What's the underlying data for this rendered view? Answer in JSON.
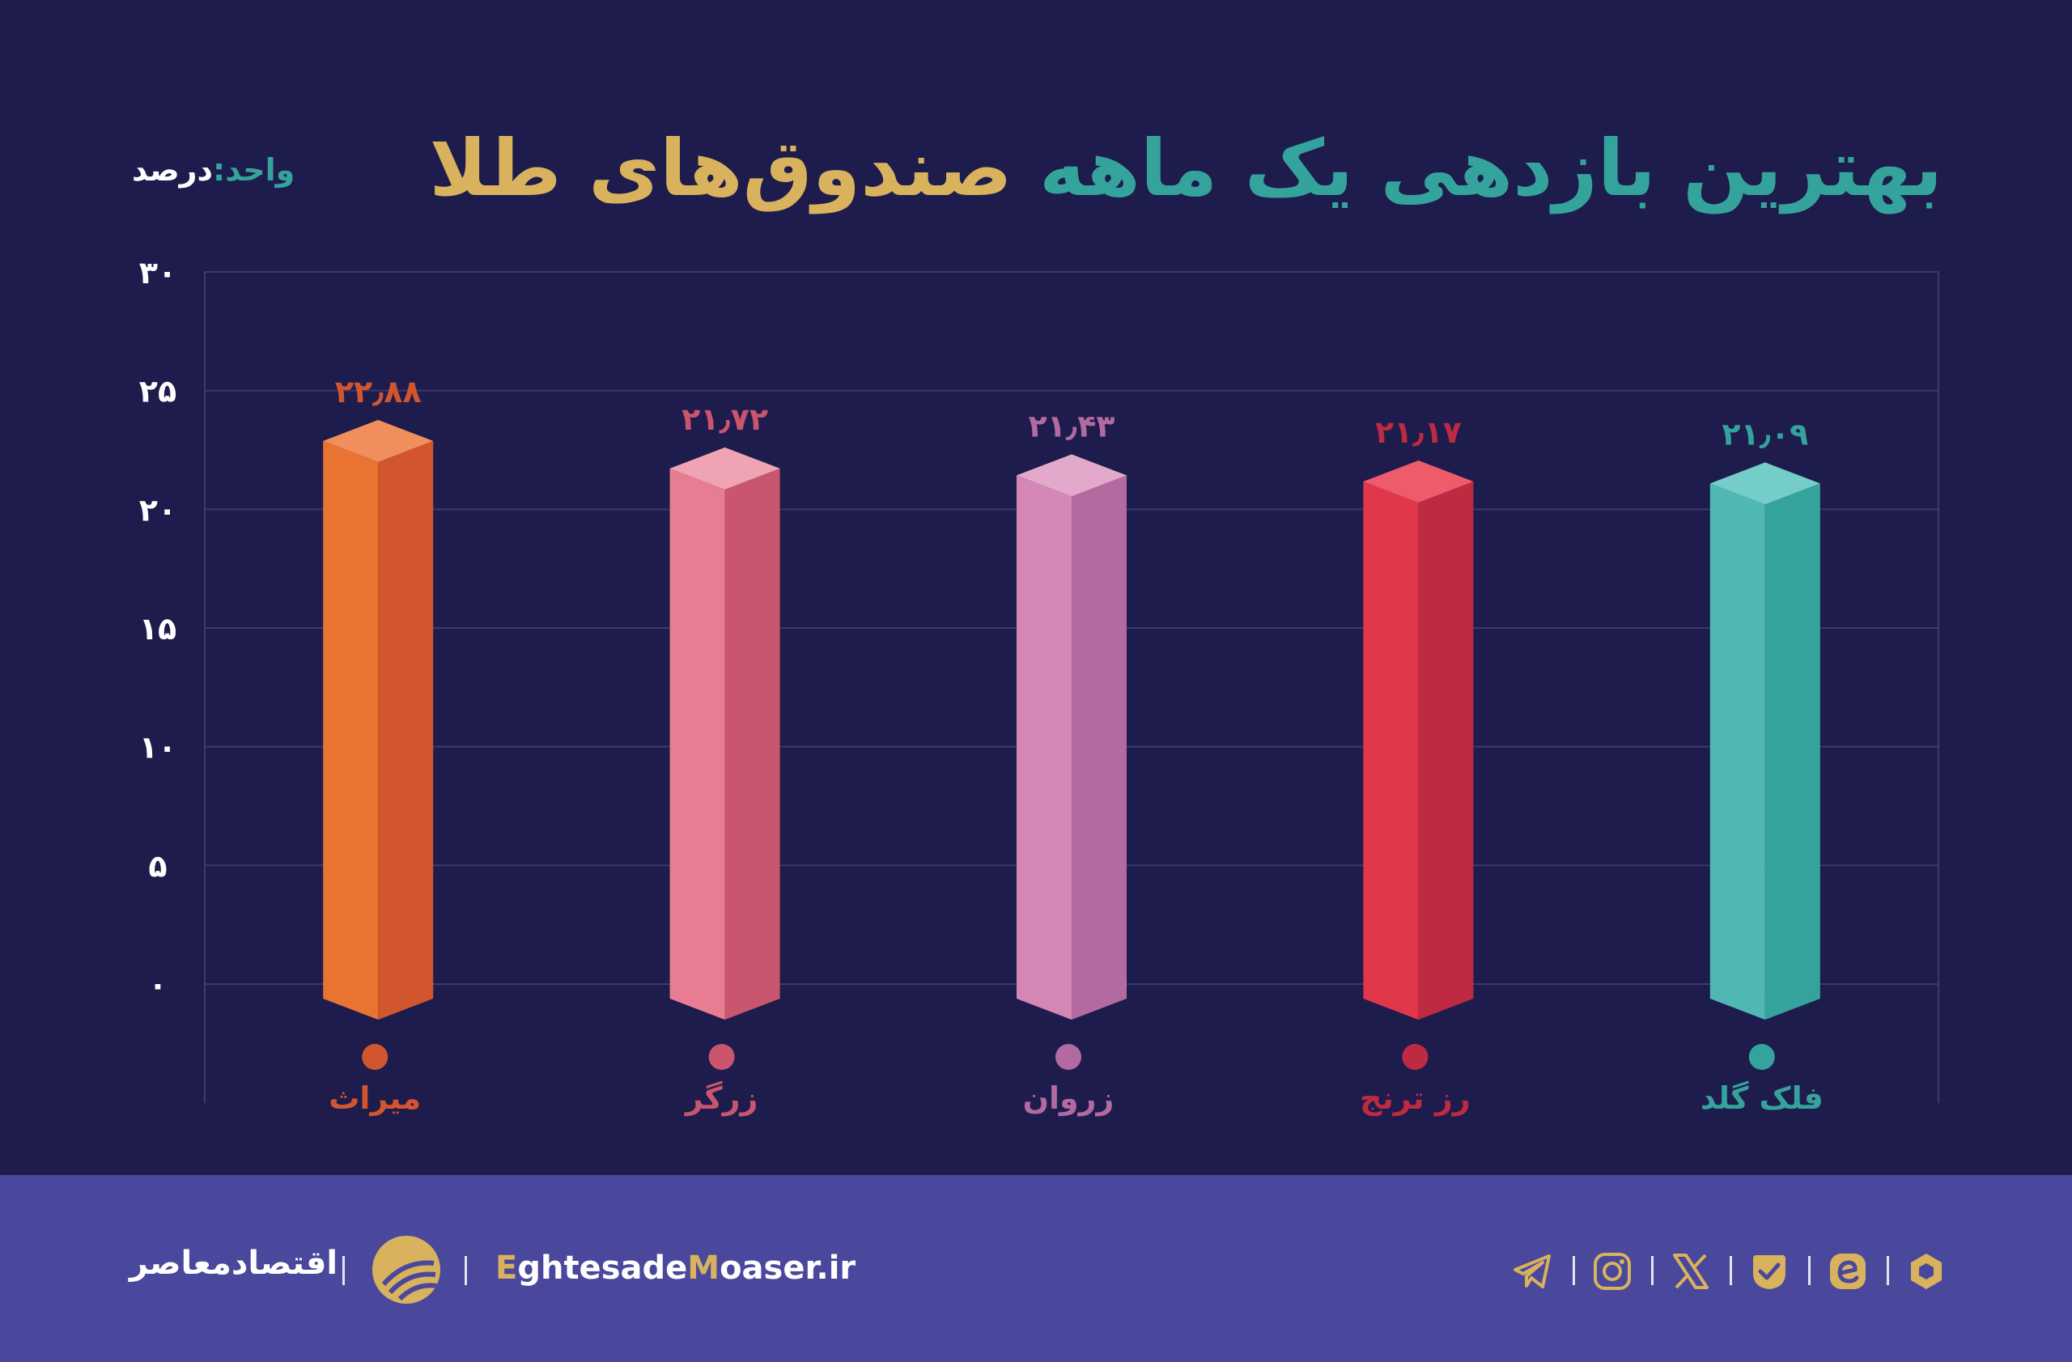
{
  "title": {
    "part1": "بهترین بازدهی یک ماهه",
    "part2": "صندوق‌های طلا"
  },
  "unit": {
    "label": "واحد:",
    "value": "درصد"
  },
  "colors": {
    "background": "#1e1c4c",
    "footer": "#4a489c",
    "accent_teal": "#34a39c",
    "accent_gold": "#d8b25c"
  },
  "chart_data": {
    "type": "bar",
    "title": "بهترین بازدهی یک ماهه صندوق‌های طلا",
    "xlabel": "",
    "ylabel": "واحد: درصد",
    "ylim": [
      0,
      30
    ],
    "yticks": [
      0,
      5,
      10,
      15,
      20,
      25,
      30
    ],
    "ytick_labels": [
      "۰",
      "۵",
      "۱۰",
      "۱۵",
      "۲۰",
      "۲۵",
      "۳۰"
    ],
    "grid": true,
    "categories": [
      "میراث",
      "زرگر",
      "زروان",
      "رز ترنج",
      "فلک گلد"
    ],
    "values": [
      22.88,
      21.72,
      21.43,
      21.17,
      21.09
    ],
    "value_labels": [
      "۲۲٫۸۸",
      "۲۱٫۷۲",
      "۲۱٫۴۳",
      "۲۱٫۱۷",
      "۲۱٫۰۹"
    ],
    "bar_colors": [
      {
        "front": "#e97331",
        "side": "#d2562d",
        "top": "#f08f5c",
        "label": "#d2562d"
      },
      {
        "front": "#e77c92",
        "side": "#c9556f",
        "top": "#f0a3b3",
        "label": "#c9556f"
      },
      {
        "front": "#d487b5",
        "side": "#b26aa0",
        "top": "#e2a9cb",
        "label": "#b26aa0"
      },
      {
        "front": "#e0384a",
        "side": "#bd2a42",
        "top": "#ee5c6b",
        "label": "#bd2a42"
      },
      {
        "front": "#4fb8b3",
        "side": "#34a39c",
        "top": "#74cdc8",
        "label": "#34a39c"
      }
    ]
  },
  "footer": {
    "brand": "اقتصادمعاصر",
    "site_prefix1": "E",
    "site_part1": "ghtesade",
    "site_prefix2": "M",
    "site_part2": "oaser",
    "site_suffix": ".ir",
    "social_icons": [
      "telegram-icon",
      "instagram-icon",
      "x-icon",
      "eitaa-icon",
      "rubika-icon",
      "bale-icon"
    ]
  }
}
